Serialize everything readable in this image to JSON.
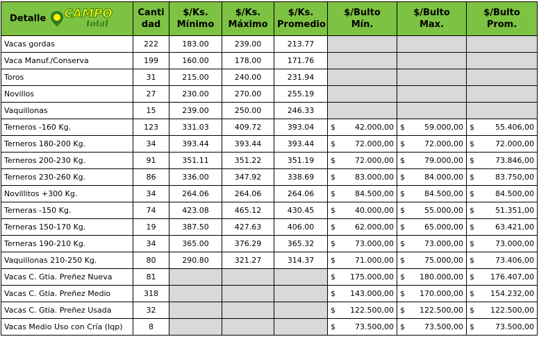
{
  "header": {
    "title": "Detalle",
    "logo": {
      "main": "CAMPO",
      "sub": "total"
    },
    "columns": [
      "Canti\ndad",
      "$/Ks.\nMínimo",
      "$/Ks.\nMáximo",
      "$/Ks.\nPromedio",
      "$/Bulto\nMín.",
      "$/Bulto\nMax.",
      "$/Bulto\nProm."
    ]
  },
  "table": {
    "rows": [
      [
        "Vacas gordas",
        222,
        "183.00",
        "239.00",
        "213.77",
        null,
        null,
        null
      ],
      [
        "Vaca Manuf./Conserva",
        199,
        "160.00",
        "178.00",
        "171.76",
        null,
        null,
        null
      ],
      [
        "Toros",
        31,
        "215.00",
        "240.00",
        "231.94",
        null,
        null,
        null
      ],
      [
        "Novillos",
        27,
        "230.00",
        "270.00",
        "255.19",
        null,
        null,
        null
      ],
      [
        "Vaquillonas",
        15,
        "239.00",
        "250.00",
        "246.33",
        null,
        null,
        null
      ],
      [
        "Terneros -160 Kg.",
        123,
        "331.03",
        "409.72",
        "393.04",
        {
          "symbol": "$",
          "amount": "42.000,00"
        },
        {
          "symbol": "$",
          "amount": "59.000,00"
        },
        {
          "symbol": "$",
          "amount": "55.406,00"
        }
      ],
      [
        "Terneros 180-200 Kg.",
        34,
        "393.44",
        "393.44",
        "393.44",
        {
          "symbol": "$",
          "amount": "72.000,00"
        },
        {
          "symbol": "$",
          "amount": "72.000,00"
        },
        {
          "symbol": "$",
          "amount": "72.000,00"
        }
      ],
      [
        "Terneros 200-230 Kg.",
        91,
        "351.11",
        "351.22",
        "351.19",
        {
          "symbol": "$",
          "amount": "72.000,00"
        },
        {
          "symbol": "$",
          "amount": "79.000,00"
        },
        {
          "symbol": "$",
          "amount": "73.846,00"
        }
      ],
      [
        "Terneros 230-260 Kg.",
        86,
        "336.00",
        "347.92",
        "338.69",
        {
          "symbol": "$",
          "amount": "83.000,00"
        },
        {
          "symbol": "$",
          "amount": "84.000,00"
        },
        {
          "symbol": "$",
          "amount": "83.750,00"
        }
      ],
      [
        "Novillitos +300 Kg.",
        34,
        "264.06",
        "264.06",
        "264.06",
        {
          "symbol": "$",
          "amount": "84.500,00"
        },
        {
          "symbol": "$",
          "amount": "84.500,00"
        },
        {
          "symbol": "$",
          "amount": "84.500,00"
        }
      ],
      [
        "Terneras -150 Kg.",
        74,
        "423.08",
        "465.12",
        "430.45",
        {
          "symbol": "$",
          "amount": "40.000,00"
        },
        {
          "symbol": "$",
          "amount": "55.000,00"
        },
        {
          "symbol": "$",
          "amount": "51.351,00"
        }
      ],
      [
        "Terneras 150-170 Kg.",
        19,
        "387.50",
        "427.63",
        "406.00",
        {
          "symbol": "$",
          "amount": "62.000,00"
        },
        {
          "symbol": "$",
          "amount": "65.000,00"
        },
        {
          "symbol": "$",
          "amount": "63.421,00"
        }
      ],
      [
        "Terneras 190-210 Kg.",
        34,
        "365.00",
        "376.29",
        "365.32",
        {
          "symbol": "$",
          "amount": "73.000,00"
        },
        {
          "symbol": "$",
          "amount": "73.000,00"
        },
        {
          "symbol": "$",
          "amount": "73.000,00"
        }
      ],
      [
        "Vaquillonas 210-250 Kg.",
        80,
        "290.80",
        "321.27",
        "314.37",
        {
          "symbol": "$",
          "amount": "71.000,00"
        },
        {
          "symbol": "$",
          "amount": "75.000,00"
        },
        {
          "symbol": "$",
          "amount": "73.406,00"
        }
      ],
      [
        "Vacas C. Gtia. Preñez Nueva",
        81,
        null,
        null,
        null,
        {
          "symbol": "$",
          "amount": "175.000,00"
        },
        {
          "symbol": "$",
          "amount": "180.000,00"
        },
        {
          "symbol": "$",
          "amount": "176.407,00"
        }
      ],
      [
        "Vacas C. Gtia. Preñez Medio",
        318,
        null,
        null,
        null,
        {
          "symbol": "$",
          "amount": "143.000,00"
        },
        {
          "symbol": "$",
          "amount": "170.000,00"
        },
        {
          "symbol": "$",
          "amount": "154.232,00"
        }
      ],
      [
        "Vacas C. Gtia. Preñez Usada",
        32,
        null,
        null,
        null,
        {
          "symbol": "$",
          "amount": "122.500,00"
        },
        {
          "symbol": "$",
          "amount": "122.500,00"
        },
        {
          "symbol": "$",
          "amount": "122.500,00"
        }
      ],
      [
        "Vacas Medio Uso con Cría (Iqp)",
        8,
        null,
        null,
        null,
        {
          "symbol": "$",
          "amount": "73.500,00"
        },
        {
          "symbol": "$",
          "amount": "73.500,00"
        },
        {
          "symbol": "$",
          "amount": "73.500,00"
        }
      ]
    ]
  }
}
